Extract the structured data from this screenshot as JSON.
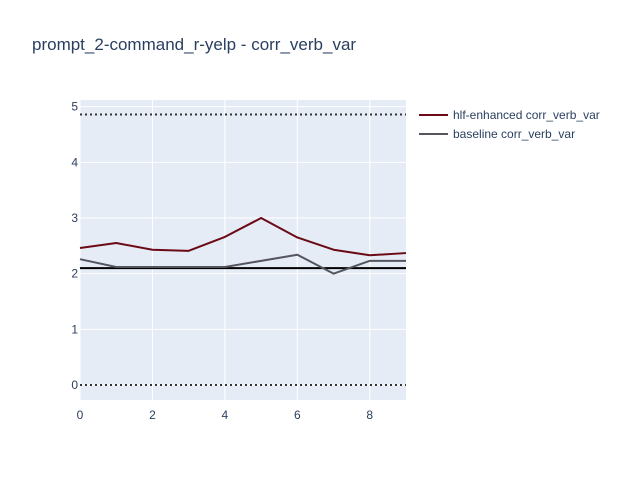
{
  "chart_data": {
    "type": "line",
    "title": "prompt_2-command_r-yelp - corr_verb_var",
    "xlabel": "",
    "ylabel": "",
    "xlim": [
      0,
      9
    ],
    "ylim": [
      -0.27,
      5.12
    ],
    "x_ticks": [
      0,
      2,
      4,
      6,
      8
    ],
    "y_ticks": [
      0,
      1,
      2,
      3,
      4,
      5
    ],
    "grid": true,
    "legend_position": "top-right",
    "x": [
      0,
      1,
      2,
      3,
      4,
      5,
      6,
      7,
      8,
      9
    ],
    "series": [
      {
        "name": "hlf-enhanced corr_verb_var",
        "color": "#6b0a14",
        "values": [
          2.46,
          2.55,
          2.43,
          2.41,
          2.66,
          3.0,
          2.65,
          2.43,
          2.33,
          2.37
        ]
      },
      {
        "name": "baseline corr_verb_var",
        "color": "#555560",
        "values": [
          2.26,
          2.12,
          2.12,
          2.12,
          2.12,
          2.23,
          2.34,
          2.0,
          2.23,
          2.23
        ]
      }
    ],
    "reference_lines": [
      {
        "y": 4.86,
        "style": "dotted",
        "color": "#333333"
      },
      {
        "y": 0.0,
        "style": "dotted",
        "color": "#333333"
      },
      {
        "y": 2.1,
        "style": "solid",
        "color": "#000000"
      }
    ]
  }
}
